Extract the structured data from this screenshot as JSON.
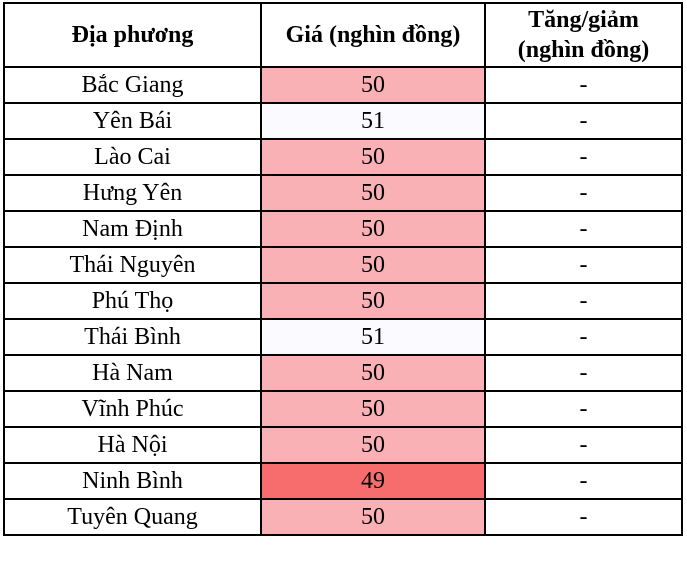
{
  "chart_data": {
    "type": "table",
    "title": "",
    "columns": [
      "Địa phương",
      "Giá (nghìn đồng)",
      "Tăng/giảm (nghìn đồng)"
    ],
    "categories": [
      "Bắc Giang",
      "Yên Bái",
      "Lào Cai",
      "Hưng Yên",
      "Nam Định",
      "Thái Nguyên",
      "Phú Thọ",
      "Thái Bình",
      "Hà Nam",
      "Vĩnh Phúc",
      "Hà Nội",
      "Ninh Bình",
      "Tuyên Quang"
    ],
    "values": [
      50,
      51,
      50,
      50,
      50,
      50,
      50,
      51,
      50,
      50,
      50,
      49,
      50
    ],
    "changes": [
      "-",
      "-",
      "-",
      "-",
      "-",
      "-",
      "-",
      "-",
      "-",
      "-",
      "-",
      "-",
      "-"
    ]
  },
  "table": {
    "headers": {
      "locality": "Địa phương",
      "price": "Giá (nghìn đồng)",
      "change": "Tăng/giảm\n(nghìn đồng)"
    },
    "colors": {
      "pink": "#f9b1b6",
      "red": "#f76d6e",
      "light": "#fbfaff"
    },
    "rows": [
      {
        "province": "Bắc Giang",
        "price": "50",
        "change": "-",
        "tone": "pink"
      },
      {
        "province": "Yên Bái",
        "price": "51",
        "change": "-",
        "tone": "light"
      },
      {
        "province": "Lào Cai",
        "price": "50",
        "change": "-",
        "tone": "pink"
      },
      {
        "province": "Hưng Yên",
        "price": "50",
        "change": "-",
        "tone": "pink"
      },
      {
        "province": "Nam Định",
        "price": "50",
        "change": "-",
        "tone": "pink"
      },
      {
        "province": "Thái Nguyên",
        "price": "50",
        "change": "-",
        "tone": "pink"
      },
      {
        "province": "Phú Thọ",
        "price": "50",
        "change": "-",
        "tone": "pink"
      },
      {
        "province": "Thái Bình",
        "price": "51",
        "change": "-",
        "tone": "light"
      },
      {
        "province": "Hà Nam",
        "price": "50",
        "change": "-",
        "tone": "pink"
      },
      {
        "province": "Vĩnh Phúc",
        "price": "50",
        "change": "-",
        "tone": "pink"
      },
      {
        "province": "Hà Nội",
        "price": "50",
        "change": "-",
        "tone": "pink"
      },
      {
        "province": "Ninh Bình",
        "price": "49",
        "change": "-",
        "tone": "red"
      },
      {
        "province": "Tuyên Quang",
        "price": "50",
        "change": "-",
        "tone": "pink"
      }
    ]
  }
}
